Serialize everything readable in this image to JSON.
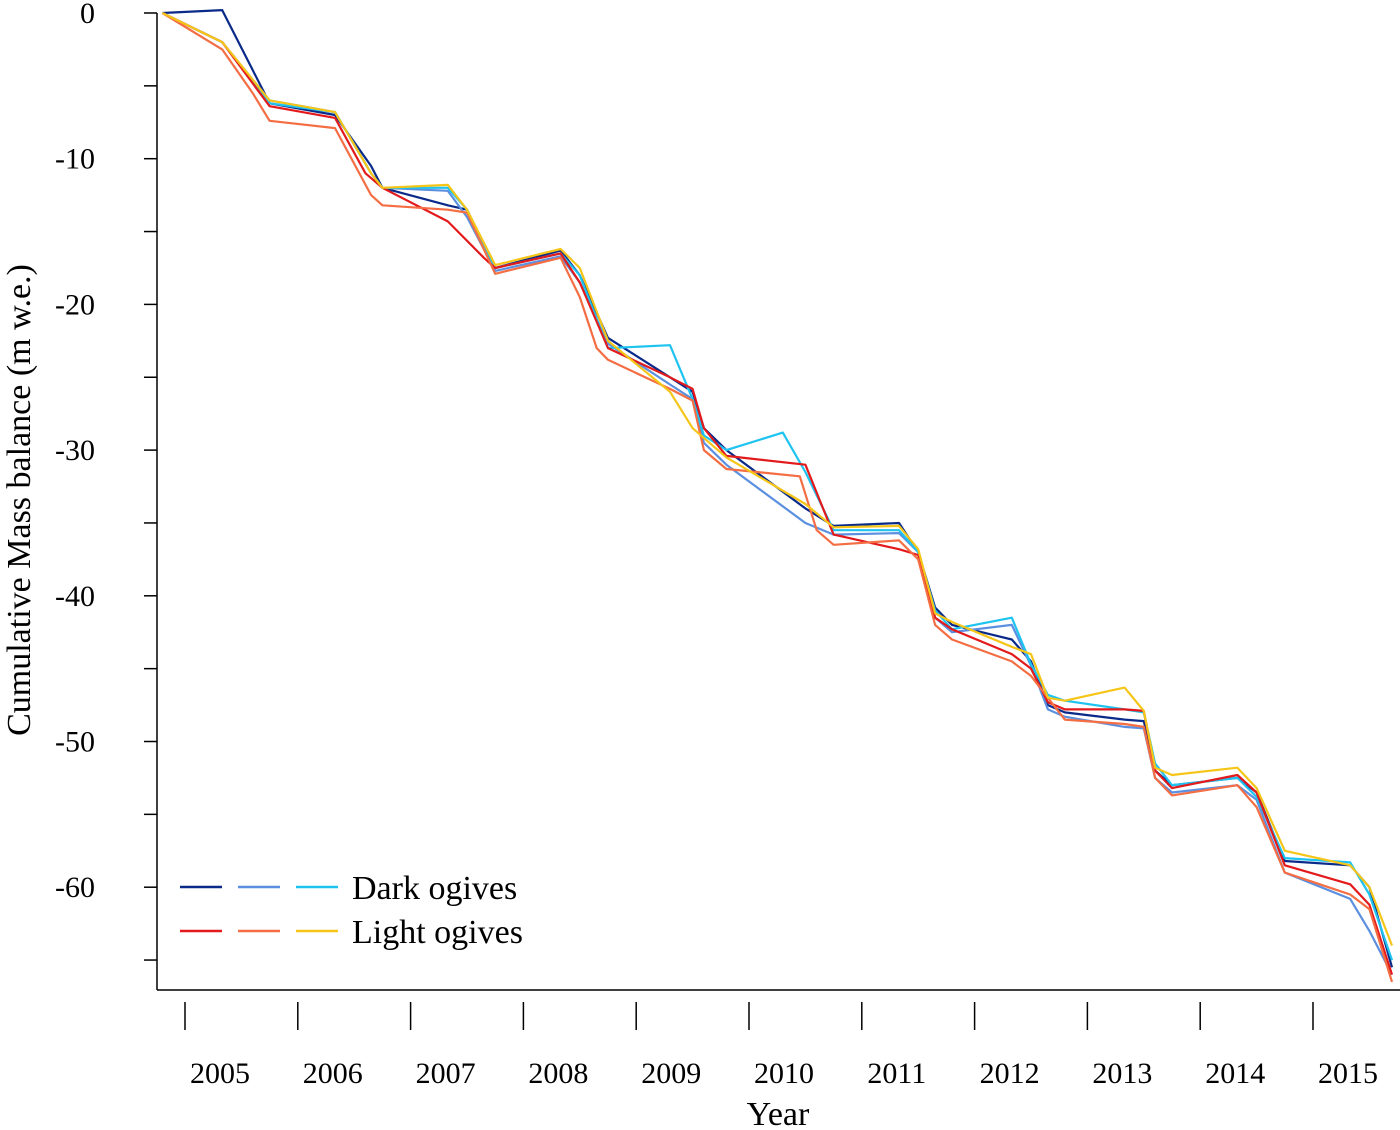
{
  "chart_data": {
    "type": "line",
    "title": "",
    "xlabel": "Year",
    "ylabel": "Cumulative Mass balance (m w.e.)",
    "xlim": [
      2004.75,
      2015.7
    ],
    "ylim": [
      -67,
      0
    ],
    "x_ticks": [
      "2005",
      "2006",
      "2007",
      "2008",
      "2009",
      "2010",
      "2011",
      "2012",
      "2013",
      "2014",
      "2015"
    ],
    "y_ticks_labeled": [
      {
        "value": 0,
        "label": "0"
      },
      {
        "value": -10,
        "label": "-10"
      },
      {
        "value": -20,
        "label": "-20"
      },
      {
        "value": -30,
        "label": "-30"
      },
      {
        "value": -40,
        "label": "-40"
      },
      {
        "value": -50,
        "label": "-50"
      },
      {
        "value": -60,
        "label": "-60"
      }
    ],
    "y_ticks_minor": [
      -5,
      -15,
      -25,
      -35,
      -45,
      -55,
      -65
    ],
    "grid": false,
    "legend": {
      "position": "bottom-left",
      "rows": [
        {
          "label": "Dark ogives",
          "colors": [
            "#0a2a8a",
            "#5b8fe0",
            "#1ec3f0"
          ]
        },
        {
          "label": "Light ogives",
          "colors": [
            "#e31a1c",
            "#f46d43",
            "#f5c518"
          ]
        }
      ]
    },
    "series": [
      {
        "color": "#0a2a8a",
        "group": "Dark ogives",
        "x": [
          2004.8,
          2005.33,
          2005.75,
          2006.33,
          2006.65,
          2006.75,
          2007.33,
          2007.5,
          2007.75,
          2008.33,
          2008.5,
          2008.75,
          2009.3,
          2009.5,
          2009.6,
          2009.8,
          2010.5,
          2010.75,
          2011.33,
          2011.5,
          2011.65,
          2011.8,
          2012.33,
          2012.5,
          2012.65,
          2012.8,
          2013.33,
          2013.5,
          2013.6,
          2013.75,
          2014.33,
          2014.5,
          2014.75,
          2015.33,
          2015.5,
          2015.7
        ],
        "values": [
          0,
          0.2,
          -6.2,
          -7,
          -10.5,
          -12,
          -13.2,
          -13.5,
          -17.5,
          -16.3,
          -18,
          -22.3,
          -25,
          -26,
          -28.5,
          -30,
          -34,
          -35.2,
          -35,
          -37,
          -40.8,
          -42,
          -43,
          -44.5,
          -47.5,
          -48,
          -48.5,
          -48.6,
          -52,
          -53,
          -52.5,
          -53.5,
          -58.2,
          -58.5,
          -60,
          -65.5
        ]
      },
      {
        "color": "#5b8fe0",
        "group": "Dark ogives",
        "x": [
          2004.8,
          2005.33,
          2005.75,
          2006.33,
          2006.65,
          2006.75,
          2007.33,
          2007.5,
          2007.75,
          2008.33,
          2008.5,
          2008.75,
          2009.3,
          2009.5,
          2009.6,
          2009.8,
          2010.5,
          2010.75,
          2011.33,
          2011.5,
          2011.65,
          2011.8,
          2012.33,
          2012.5,
          2012.65,
          2012.8,
          2013.33,
          2013.5,
          2013.6,
          2013.75,
          2014.33,
          2014.5,
          2014.75,
          2015.33,
          2015.5,
          2015.7
        ],
        "values": [
          0,
          -2,
          -6,
          -6.8,
          -11,
          -12,
          -12.2,
          -14,
          -17.7,
          -16.7,
          -18.5,
          -22.7,
          -25.5,
          -26.5,
          -29.5,
          -31,
          -35,
          -35.8,
          -35.7,
          -37,
          -41.5,
          -42.5,
          -42,
          -44.8,
          -47.8,
          -48.3,
          -49,
          -49.1,
          -52.5,
          -53.5,
          -53,
          -54,
          -59,
          -60.8,
          -63,
          -66
        ]
      },
      {
        "color": "#1ec3f0",
        "group": "Dark ogives",
        "x": [
          2004.8,
          2005.33,
          2005.75,
          2006.33,
          2006.65,
          2006.75,
          2007.33,
          2007.5,
          2007.75,
          2008.33,
          2008.5,
          2008.75,
          2009.3,
          2009.5,
          2009.6,
          2009.8,
          2010.3,
          2010.5,
          2010.75,
          2011.33,
          2011.5,
          2011.65,
          2011.8,
          2012.33,
          2012.5,
          2012.65,
          2012.8,
          2013.33,
          2013.5,
          2013.6,
          2013.75,
          2014.33,
          2014.5,
          2014.75,
          2015.33,
          2015.5,
          2015.7
        ],
        "values": [
          0,
          -2,
          -6.2,
          -6.8,
          -11,
          -12,
          -12,
          -13.5,
          -17.5,
          -16.5,
          -18,
          -23,
          -22.8,
          -26.5,
          -29,
          -30,
          -28.8,
          -31.5,
          -35.5,
          -35.5,
          -37,
          -41,
          -42.3,
          -41.5,
          -44.7,
          -46.8,
          -47.2,
          -47.8,
          -48,
          -51.5,
          -53,
          -52.5,
          -53.8,
          -58,
          -58.3,
          -60.5,
          -65
        ]
      },
      {
        "color": "#e31a1c",
        "group": "Light ogives",
        "x": [
          2004.8,
          2005.33,
          2005.75,
          2006.33,
          2006.6,
          2006.75,
          2007.33,
          2007.65,
          2007.75,
          2008.33,
          2008.5,
          2008.75,
          2009.3,
          2009.5,
          2009.6,
          2009.8,
          2010.5,
          2010.75,
          2011.33,
          2011.5,
          2011.65,
          2011.8,
          2012.33,
          2012.5,
          2012.65,
          2012.8,
          2013.33,
          2013.5,
          2013.6,
          2013.75,
          2014.33,
          2014.5,
          2014.75,
          2015.33,
          2015.5,
          2015.7
        ],
        "values": [
          0,
          -2,
          -6.4,
          -7.2,
          -11,
          -12,
          -14.3,
          -16.8,
          -17.5,
          -16.5,
          -18.5,
          -23,
          -25,
          -25.8,
          -28.5,
          -30.4,
          -31,
          -35.8,
          -36.8,
          -37.2,
          -41.5,
          -42.3,
          -44,
          -45,
          -47.3,
          -47.8,
          -47.8,
          -47.9,
          -52,
          -53.2,
          -52.3,
          -53.5,
          -58.5,
          -59.8,
          -61.2,
          -66
        ]
      },
      {
        "color": "#f46d43",
        "group": "Light ogives",
        "x": [
          2004.8,
          2005.33,
          2005.6,
          2005.75,
          2006.33,
          2006.65,
          2006.75,
          2007.33,
          2007.5,
          2007.75,
          2008.33,
          2008.5,
          2008.65,
          2008.75,
          2009.3,
          2009.5,
          2009.6,
          2009.8,
          2010.45,
          2010.6,
          2010.75,
          2011.33,
          2011.5,
          2011.65,
          2011.8,
          2012.33,
          2012.5,
          2012.65,
          2012.8,
          2013.33,
          2013.5,
          2013.6,
          2013.75,
          2014.33,
          2014.5,
          2014.75,
          2015.33,
          2015.5,
          2015.7
        ],
        "values": [
          0,
          -2.5,
          -5.5,
          -7.4,
          -7.9,
          -12.5,
          -13.2,
          -13.5,
          -13.7,
          -17.9,
          -16.8,
          -19.5,
          -23,
          -23.8,
          -25.8,
          -26.6,
          -30,
          -31.3,
          -31.8,
          -35.5,
          -36.5,
          -36.2,
          -37.5,
          -42,
          -43,
          -44.5,
          -45.5,
          -47,
          -48.5,
          -48.8,
          -49,
          -52.5,
          -53.7,
          -53,
          -54.5,
          -59,
          -60.5,
          -61.5,
          -66.5
        ]
      },
      {
        "color": "#f5c518",
        "group": "Light ogives",
        "x": [
          2004.8,
          2005.33,
          2005.75,
          2006.33,
          2006.65,
          2006.75,
          2007.33,
          2007.5,
          2007.75,
          2008.33,
          2008.5,
          2008.75,
          2009.3,
          2009.5,
          2009.8,
          2010.5,
          2010.75,
          2011.33,
          2011.5,
          2011.65,
          2011.8,
          2012.33,
          2012.5,
          2012.65,
          2012.8,
          2013.33,
          2013.5,
          2013.6,
          2013.75,
          2014.33,
          2014.5,
          2014.75,
          2015.33,
          2015.5,
          2015.7
        ],
        "values": [
          0,
          -2,
          -6,
          -6.8,
          -11,
          -12,
          -11.8,
          -13.5,
          -17.3,
          -16.2,
          -17.5,
          -22.5,
          -26,
          -28.5,
          -30.5,
          -33.7,
          -35.3,
          -35.2,
          -36.8,
          -41.2,
          -41.8,
          -43.5,
          -44,
          -47,
          -47.2,
          -46.3,
          -47.9,
          -51.8,
          -52.3,
          -51.8,
          -53.2,
          -57.5,
          -58.5,
          -60,
          -64
        ]
      }
    ]
  }
}
